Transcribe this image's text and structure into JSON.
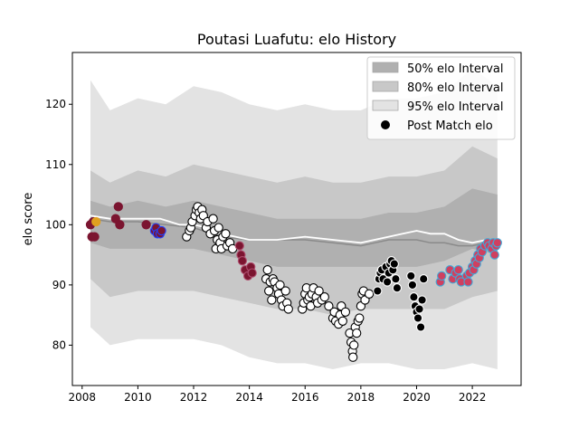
{
  "chart_data": {
    "type": "scatter",
    "title": "Poutasi Luafutu: elo History",
    "xlabel": "",
    "ylabel": "elo score",
    "xlim": [
      2007.65,
      2023.75
    ],
    "ylim": [
      73.3,
      128.6
    ],
    "x_ticks": [
      2008,
      2010,
      2012,
      2014,
      2016,
      2018,
      2020,
      2022
    ],
    "y_ticks": [
      80,
      90,
      100,
      110,
      120
    ],
    "x_tick_labels": [
      "2008",
      "2010",
      "2012",
      "2014",
      "2016",
      "2018",
      "2020",
      "2022"
    ],
    "y_tick_labels": [
      "80",
      "90",
      "100",
      "110",
      "120"
    ],
    "grid": false,
    "legend_position": "top-right",
    "legend": [
      {
        "label": "50% elo Interval",
        "kind": "band",
        "color": "#b0b0b0"
      },
      {
        "label": "80% elo Interval",
        "kind": "band",
        "color": "#c8c8c8"
      },
      {
        "label": "95% elo Interval",
        "kind": "band",
        "color": "#e3e3e3"
      },
      {
        "label": "Post Match elo",
        "kind": "marker",
        "color": "#000000"
      }
    ],
    "bands": {
      "x": [
        2008.3,
        2009.0,
        2010.0,
        2011.0,
        2012.0,
        2013.0,
        2014.0,
        2015.0,
        2016.0,
        2017.0,
        2018.0,
        2019.0,
        2020.0,
        2021.0,
        2022.0,
        2022.9
      ],
      "p95_upper": [
        124,
        119,
        121,
        120,
        123,
        122,
        120,
        119,
        120,
        119,
        119,
        121,
        121,
        122,
        126,
        123
      ],
      "p80_upper": [
        109,
        107,
        109,
        108,
        110,
        109,
        108,
        107,
        108,
        107,
        107,
        108,
        108,
        109,
        113,
        111
      ],
      "p50_upper": [
        104,
        103,
        104,
        103,
        104,
        103,
        102,
        101,
        101,
        101,
        101,
        102,
        102,
        103,
        106,
        105
      ],
      "p50_lower": [
        97,
        96,
        96,
        96,
        96,
        95,
        94,
        93,
        93,
        93,
        93,
        93,
        93,
        94,
        96,
        95
      ],
      "p80_lower": [
        91,
        88,
        89,
        89,
        89,
        88,
        87,
        86,
        86,
        85,
        86,
        86,
        86,
        86,
        88,
        89
      ],
      "p95_lower": [
        83,
        80,
        81,
        81,
        81,
        80,
        78,
        77,
        77,
        76,
        77,
        77,
        76,
        76,
        77,
        76
      ]
    },
    "median_line": {
      "x": [
        2008.3,
        2009.0,
        2010.0,
        2011.0,
        2012.0,
        2013.0,
        2014.0,
        2015.0,
        2016.0,
        2017.0,
        2018.0,
        2018.5,
        2019.0,
        2019.5,
        2020.0,
        2020.5,
        2021.0,
        2021.5,
        2022.0,
        2022.5,
        2022.9
      ],
      "y": [
        101,
        100.5,
        100.5,
        100,
        99.5,
        98,
        97.5,
        97.5,
        97.5,
        97,
        96.5,
        97,
        97.5,
        97.5,
        97.5,
        97,
        97,
        96.5,
        96.5,
        97,
        97
      ]
    },
    "white_line": {
      "x": [
        2008.3,
        2009.0,
        2010.0,
        2010.8,
        2011.5,
        2012.0,
        2012.5,
        2013.0,
        2013.5,
        2014.0,
        2015.0,
        2016.0,
        2017.0,
        2018.0,
        2019.0,
        2019.5,
        2020.0,
        2020.5,
        2021.0,
        2021.5,
        2022.0,
        2022.5,
        2022.9
      ],
      "y": [
        101.5,
        101,
        101,
        101,
        100,
        100,
        99.5,
        98.5,
        98,
        97.5,
        97.5,
        98,
        97.5,
        97,
        98,
        98.5,
        99,
        98.5,
        98.5,
        97.5,
        97,
        97.5,
        97.5
      ]
    },
    "series": [
      {
        "face": "#7b1530",
        "edge": "#7b1530",
        "points": [
          [
            2008.3,
            100
          ],
          [
            2008.35,
            98
          ],
          [
            2008.45,
            98
          ],
          [
            2008.4,
            100.5
          ],
          [
            2009.2,
            101
          ],
          [
            2009.3,
            103
          ],
          [
            2009.35,
            100
          ],
          [
            2010.3,
            100
          ]
        ]
      },
      {
        "face": "#e0a020",
        "edge": "#e0a020",
        "points": [
          [
            2008.5,
            100.5
          ]
        ]
      },
      {
        "face": "#7b1530",
        "edge": "#2040ff",
        "points": [
          [
            2010.6,
            99
          ],
          [
            2010.65,
            99.5
          ],
          [
            2010.7,
            98.5
          ],
          [
            2010.8,
            98.5
          ],
          [
            2010.85,
            99
          ]
        ]
      },
      {
        "face": "#ffffff",
        "edge": "#000000",
        "points": [
          [
            2011.75,
            98
          ],
          [
            2011.85,
            99
          ],
          [
            2011.9,
            99.5
          ],
          [
            2011.95,
            100.5
          ],
          [
            2012.05,
            101.5
          ],
          [
            2012.1,
            102.5
          ],
          [
            2012.15,
            103
          ],
          [
            2012.2,
            102
          ],
          [
            2012.25,
            101
          ],
          [
            2012.3,
            102.5
          ],
          [
            2012.35,
            101.5
          ],
          [
            2012.45,
            99.5
          ],
          [
            2012.5,
            100.5
          ],
          [
            2012.6,
            98.5
          ],
          [
            2012.7,
            101
          ],
          [
            2012.75,
            99
          ],
          [
            2012.8,
            96
          ],
          [
            2012.85,
            97.5
          ],
          [
            2012.9,
            99.5
          ],
          [
            2012.95,
            97
          ],
          [
            2013.0,
            96
          ],
          [
            2013.05,
            98
          ],
          [
            2013.15,
            98.5
          ],
          [
            2013.2,
            96.5
          ],
          [
            2013.3,
            97
          ],
          [
            2013.4,
            96
          ]
        ]
      },
      {
        "face": "#7b1530",
        "edge": "#b05070",
        "points": [
          [
            2013.65,
            96.5
          ],
          [
            2013.7,
            95
          ],
          [
            2013.75,
            94
          ],
          [
            2013.85,
            92.5
          ],
          [
            2013.95,
            91.5
          ],
          [
            2014.05,
            93
          ],
          [
            2014.1,
            92
          ]
        ]
      },
      {
        "face": "#ffffff",
        "edge": "#000000",
        "points": [
          [
            2014.6,
            91
          ],
          [
            2014.65,
            92.5
          ],
          [
            2014.7,
            89
          ],
          [
            2014.75,
            90.5
          ],
          [
            2014.8,
            87.5
          ],
          [
            2014.85,
            91
          ],
          [
            2014.9,
            90.5
          ],
          [
            2015.0,
            89.5
          ],
          [
            2015.05,
            88.5
          ],
          [
            2015.1,
            90
          ],
          [
            2015.15,
            87.5
          ],
          [
            2015.2,
            86.5
          ],
          [
            2015.3,
            89
          ],
          [
            2015.35,
            87
          ],
          [
            2015.4,
            86
          ],
          [
            2015.9,
            86
          ],
          [
            2015.95,
            87
          ],
          [
            2016.0,
            88.5
          ],
          [
            2016.05,
            89.5
          ],
          [
            2016.1,
            87.5
          ],
          [
            2016.15,
            88
          ],
          [
            2016.2,
            86.5
          ],
          [
            2016.25,
            88.5
          ],
          [
            2016.3,
            89.5
          ],
          [
            2016.4,
            88
          ],
          [
            2016.45,
            87
          ],
          [
            2016.5,
            89
          ],
          [
            2016.6,
            87.5
          ],
          [
            2016.7,
            88
          ],
          [
            2016.85,
            86.5
          ],
          [
            2017.0,
            84.5
          ],
          [
            2017.05,
            85.5
          ],
          [
            2017.1,
            84
          ],
          [
            2017.2,
            83.5
          ],
          [
            2017.25,
            85
          ],
          [
            2017.3,
            86.5
          ],
          [
            2017.35,
            84
          ],
          [
            2017.45,
            85.5
          ],
          [
            2017.6,
            82
          ],
          [
            2017.65,
            80.5
          ],
          [
            2017.7,
            79
          ],
          [
            2017.72,
            78
          ],
          [
            2017.75,
            80
          ],
          [
            2017.8,
            83
          ],
          [
            2017.85,
            82
          ],
          [
            2017.9,
            84
          ],
          [
            2017.95,
            84.5
          ],
          [
            2018.0,
            86.5
          ],
          [
            2018.05,
            88.5
          ],
          [
            2018.1,
            89
          ],
          [
            2018.15,
            87.5
          ],
          [
            2018.3,
            88.5
          ]
        ]
      },
      {
        "face": "#000000",
        "edge": "#ffffff",
        "points": [
          [
            2018.6,
            89
          ],
          [
            2018.65,
            91
          ],
          [
            2018.7,
            92
          ],
          [
            2018.75,
            92.5
          ],
          [
            2018.8,
            91
          ],
          [
            2018.9,
            93
          ],
          [
            2018.95,
            90.5
          ],
          [
            2019.0,
            92
          ],
          [
            2019.05,
            93.5
          ],
          [
            2019.1,
            94
          ],
          [
            2019.15,
            92.5
          ],
          [
            2019.2,
            93.5
          ],
          [
            2019.25,
            91
          ],
          [
            2019.3,
            89.5
          ],
          [
            2019.8,
            91.5
          ],
          [
            2019.85,
            90
          ],
          [
            2019.9,
            88
          ],
          [
            2019.95,
            86.5
          ],
          [
            2020.0,
            85.5
          ],
          [
            2020.05,
            84.5
          ],
          [
            2020.1,
            86
          ],
          [
            2020.15,
            83
          ],
          [
            2020.2,
            87.5
          ],
          [
            2020.25,
            91
          ]
        ]
      },
      {
        "face": "#cf4060",
        "edge": "#40a8d8",
        "points": [
          [
            2020.85,
            90.5
          ],
          [
            2020.9,
            91.5
          ],
          [
            2021.2,
            92.5
          ],
          [
            2021.3,
            91
          ],
          [
            2021.4,
            92
          ],
          [
            2021.5,
            92.5
          ],
          [
            2021.55,
            91
          ],
          [
            2021.6,
            90.5
          ],
          [
            2021.8,
            91.5
          ],
          [
            2021.85,
            90.5
          ],
          [
            2021.9,
            92
          ],
          [
            2022.0,
            93
          ],
          [
            2022.05,
            92.5
          ],
          [
            2022.1,
            94
          ],
          [
            2022.15,
            93.5
          ],
          [
            2022.2,
            95
          ],
          [
            2022.25,
            94.5
          ],
          [
            2022.3,
            96
          ],
          [
            2022.35,
            95.5
          ],
          [
            2022.45,
            96.5
          ],
          [
            2022.55,
            97
          ],
          [
            2022.6,
            96.5
          ],
          [
            2022.7,
            96
          ],
          [
            2022.75,
            97
          ],
          [
            2022.8,
            95
          ],
          [
            2022.85,
            96.5
          ],
          [
            2022.9,
            97
          ]
        ]
      }
    ]
  }
}
